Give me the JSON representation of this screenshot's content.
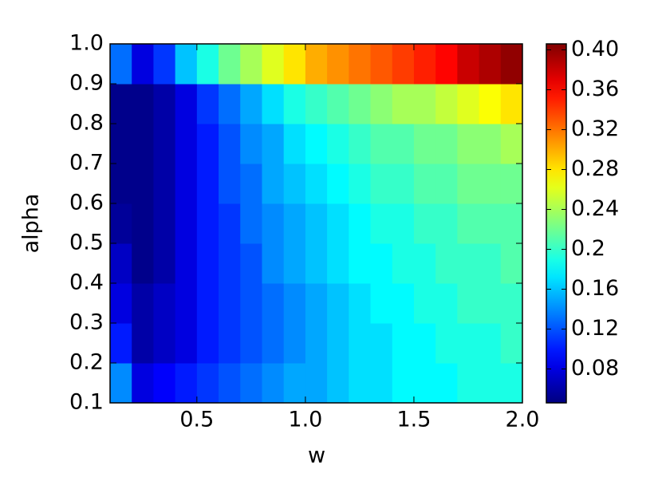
{
  "chart_data": {
    "type": "heatmap",
    "x_label": "w",
    "y_label": "alpha",
    "colormap": "jet",
    "xbins": [
      0.1,
      0.2,
      0.3,
      0.4,
      0.5,
      0.6,
      0.7,
      0.8,
      0.9,
      1.0,
      1.1,
      1.2,
      1.3,
      1.4,
      1.5,
      1.6,
      1.7,
      1.8,
      1.9,
      2.0
    ],
    "ybins": [
      0.1,
      0.2,
      0.3,
      0.4,
      0.5,
      0.6,
      0.7,
      0.8,
      0.9,
      1.0
    ],
    "z": [
      [
        0.14,
        0.08,
        0.09,
        0.1,
        0.11,
        0.12,
        0.13,
        0.14,
        0.15,
        0.15,
        0.16,
        0.17,
        0.17,
        0.18,
        0.18,
        0.18,
        0.19,
        0.19,
        0.19
      ],
      [
        0.1,
        0.06,
        0.07,
        0.08,
        0.1,
        0.11,
        0.12,
        0.13,
        0.14,
        0.15,
        0.16,
        0.17,
        0.17,
        0.18,
        0.18,
        0.19,
        0.19,
        0.19,
        0.2
      ],
      [
        0.08,
        0.06,
        0.07,
        0.08,
        0.1,
        0.11,
        0.12,
        0.13,
        0.14,
        0.15,
        0.16,
        0.17,
        0.18,
        0.18,
        0.19,
        0.19,
        0.2,
        0.2,
        0.2
      ],
      [
        0.07,
        0.05,
        0.06,
        0.08,
        0.1,
        0.11,
        0.12,
        0.14,
        0.15,
        0.16,
        0.17,
        0.18,
        0.18,
        0.19,
        0.19,
        0.2,
        0.2,
        0.2,
        0.21
      ],
      [
        0.055,
        0.05,
        0.06,
        0.08,
        0.1,
        0.11,
        0.13,
        0.14,
        0.15,
        0.16,
        0.17,
        0.18,
        0.19,
        0.19,
        0.2,
        0.2,
        0.21,
        0.21,
        0.21
      ],
      [
        0.05,
        0.05,
        0.06,
        0.08,
        0.1,
        0.12,
        0.13,
        0.15,
        0.16,
        0.17,
        0.18,
        0.19,
        0.2,
        0.2,
        0.21,
        0.21,
        0.22,
        0.22,
        0.22
      ],
      [
        0.05,
        0.05,
        0.06,
        0.08,
        0.1,
        0.12,
        0.14,
        0.15,
        0.17,
        0.18,
        0.19,
        0.2,
        0.21,
        0.21,
        0.22,
        0.22,
        0.23,
        0.23,
        0.24
      ],
      [
        0.05,
        0.05,
        0.06,
        0.08,
        0.11,
        0.13,
        0.15,
        0.17,
        0.19,
        0.2,
        0.21,
        0.22,
        0.23,
        0.24,
        0.24,
        0.25,
        0.26,
        0.27,
        0.28
      ],
      [
        0.13,
        0.08,
        0.11,
        0.16,
        0.19,
        0.22,
        0.24,
        0.26,
        0.28,
        0.3,
        0.31,
        0.32,
        0.33,
        0.34,
        0.35,
        0.36,
        0.38,
        0.39,
        0.4
      ]
    ],
    "xlim": [
      0.1,
      2.0
    ],
    "ylim": [
      0.1,
      1.0
    ],
    "xticks": [
      0.5,
      {
        "value": 1.0,
        "label": "1.0"
      },
      1.5,
      {
        "value": 2.0,
        "label": "2.0"
      }
    ],
    "yticks": [
      0.1,
      0.2,
      0.3,
      0.4,
      0.5,
      0.6,
      0.7,
      0.8,
      0.9,
      {
        "value": 1.0,
        "label": "1.0"
      }
    ],
    "clim": [
      0.046,
      0.406
    ],
    "cticks": [
      0.08,
      0.12,
      0.16,
      0.2,
      0.24,
      0.28,
      0.32,
      0.36,
      {
        "value": 0.4,
        "label": "0.40"
      }
    ]
  }
}
